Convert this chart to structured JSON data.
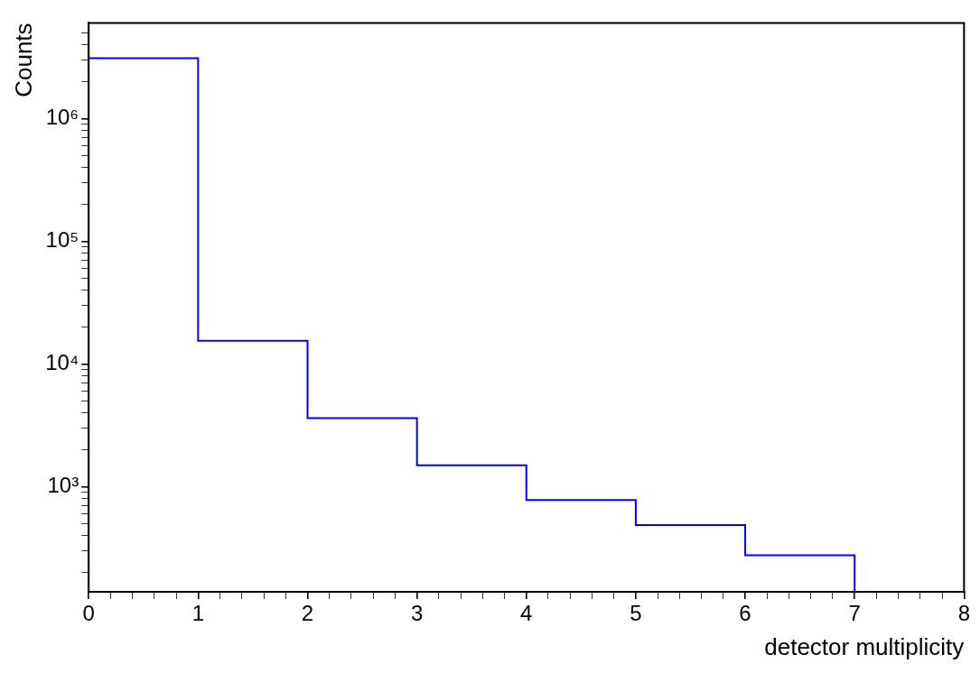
{
  "chart_data": {
    "type": "histogram",
    "xlabel": "detector multiplicity",
    "ylabel": "Counts",
    "bins": [
      0,
      1,
      2,
      3,
      4,
      5,
      6,
      7,
      8
    ],
    "values": [
      3100000,
      15500,
      3630,
      1500,
      782,
      489,
      278,
      140
    ],
    "color": "#0000ff",
    "log": "y",
    "grid": false,
    "legend": false,
    "xlim": [
      0,
      8
    ],
    "ylim": [
      140,
      6000000
    ],
    "xticks": [
      0,
      {
        "value": 0.2,
        "label": null
      },
      {
        "value": 0.4,
        "label": null
      },
      {
        "value": 0.6,
        "label": null
      },
      {
        "value": 0.8,
        "label": null
      },
      1,
      {
        "value": 1.2,
        "label": null
      },
      {
        "value": 1.4,
        "label": null
      },
      {
        "value": 1.6,
        "label": null
      },
      {
        "value": 1.8,
        "label": null
      },
      2,
      {
        "value": 2.2,
        "label": null
      },
      {
        "value": 2.4,
        "label": null
      },
      {
        "value": 2.6,
        "label": null
      },
      {
        "value": 2.8,
        "label": null
      },
      3,
      {
        "value": 3.2,
        "label": null
      },
      {
        "value": 3.4,
        "label": null
      },
      {
        "value": 3.6,
        "label": null
      },
      {
        "value": 3.8,
        "label": null
      },
      4,
      {
        "value": 4.2,
        "label": null
      },
      {
        "value": 4.4,
        "label": null
      },
      {
        "value": 4.6,
        "label": null
      },
      {
        "value": 4.8,
        "label": null
      },
      5,
      {
        "value": 5.2,
        "label": null
      },
      {
        "value": 5.4,
        "label": null
      },
      {
        "value": 5.6,
        "label": null
      },
      {
        "value": 5.8,
        "label": null
      },
      6,
      {
        "value": 6.2,
        "label": null
      },
      {
        "value": 6.4,
        "label": null
      },
      {
        "value": 6.6,
        "label": null
      },
      {
        "value": 6.8,
        "label": null
      },
      7,
      {
        "value": 7.2,
        "label": null
      },
      {
        "value": 7.4,
        "label": null
      },
      {
        "value": 7.6,
        "label": null
      },
      {
        "value": 7.8,
        "label": null
      },
      8
    ],
    "yticks": [
      {
        "value": 200,
        "label": null
      },
      {
        "value": 300,
        "label": null
      },
      {
        "value": 400,
        "label": null
      },
      {
        "value": 500,
        "label": null
      },
      {
        "value": 600,
        "label": null
      },
      {
        "value": 700,
        "label": null
      },
      {
        "value": 800,
        "label": null
      },
      {
        "value": 900,
        "label": null
      },
      {
        "value": 1000,
        "label": "10³"
      },
      {
        "value": 2000,
        "label": null
      },
      {
        "value": 3000,
        "label": null
      },
      {
        "value": 4000,
        "label": null
      },
      {
        "value": 5000,
        "label": null
      },
      {
        "value": 6000,
        "label": null
      },
      {
        "value": 7000,
        "label": null
      },
      {
        "value": 8000,
        "label": null
      },
      {
        "value": 9000,
        "label": null
      },
      {
        "value": 10000,
        "label": "10⁴"
      },
      {
        "value": 20000,
        "label": null
      },
      {
        "value": 30000,
        "label": null
      },
      {
        "value": 40000,
        "label": null
      },
      {
        "value": 50000,
        "label": null
      },
      {
        "value": 60000,
        "label": null
      },
      {
        "value": 70000,
        "label": null
      },
      {
        "value": 80000,
        "label": null
      },
      {
        "value": 90000,
        "label": null
      },
      {
        "value": 100000,
        "label": "10⁵"
      },
      {
        "value": 200000,
        "label": null
      },
      {
        "value": 300000,
        "label": null
      },
      {
        "value": 400000,
        "label": null
      },
      {
        "value": 500000,
        "label": null
      },
      {
        "value": 600000,
        "label": null
      },
      {
        "value": 700000,
        "label": null
      },
      {
        "value": 800000,
        "label": null
      },
      {
        "value": 900000,
        "label": null
      },
      {
        "value": 1000000,
        "label": "10⁶"
      },
      {
        "value": 2000000,
        "label": null
      },
      {
        "value": 3000000,
        "label": null
      },
      {
        "value": 4000000,
        "label": null
      },
      {
        "value": 5000000,
        "label": null
      }
    ]
  }
}
